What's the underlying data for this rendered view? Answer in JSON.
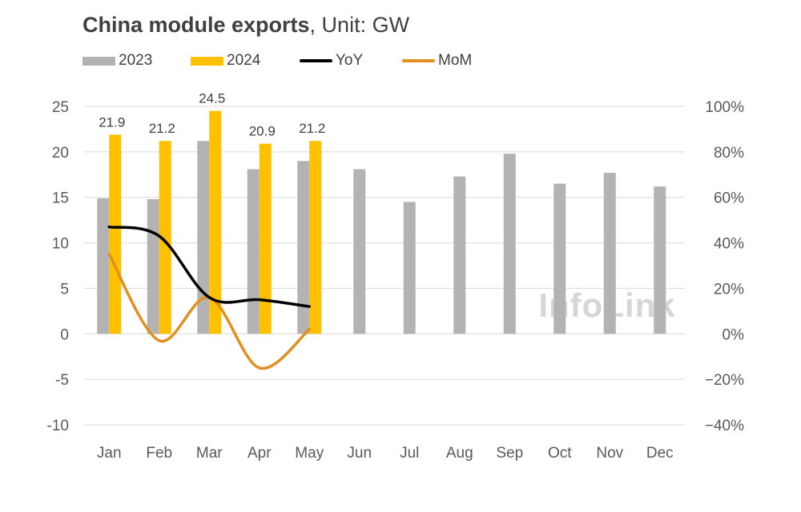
{
  "title": {
    "bold": "China module exports",
    "rest": ", Unit: GW"
  },
  "watermark": "InfoLink",
  "chart_data": {
    "type": "bar",
    "categories": [
      "Jan",
      "Feb",
      "Mar",
      "Apr",
      "May",
      "Jun",
      "Jul",
      "Aug",
      "Sep",
      "Oct",
      "Nov",
      "Dec"
    ],
    "series": [
      {
        "name": "2023",
        "type": "bar",
        "axis": "left",
        "color": "#b3b3b3",
        "values": [
          14.9,
          14.8,
          21.2,
          18.1,
          19.0,
          18.1,
          14.5,
          17.3,
          19.8,
          16.5,
          17.7,
          16.2
        ]
      },
      {
        "name": "2024",
        "type": "bar",
        "axis": "left",
        "color": "#ffc000",
        "values": [
          21.9,
          21.2,
          24.5,
          20.9,
          21.2,
          null,
          null,
          null,
          null,
          null,
          null,
          null
        ],
        "data_labels": [
          "21.9",
          "21.2",
          "24.5",
          "20.9",
          "21.2"
        ]
      },
      {
        "name": "YoY",
        "type": "line",
        "axis": "right",
        "color": "#000000",
        "values": [
          47,
          43,
          16,
          15,
          12,
          null,
          null,
          null,
          null,
          null,
          null,
          null
        ]
      },
      {
        "name": "MoM",
        "type": "line",
        "axis": "right",
        "color": "#e0901e",
        "values": [
          35,
          -3,
          16,
          -15,
          2,
          null,
          null,
          null,
          null,
          null,
          null,
          null
        ]
      }
    ],
    "y_left": {
      "min": -10,
      "max": 25,
      "ticks": [
        "25",
        "20",
        "15",
        "10",
        "5",
        "0",
        "-5",
        "-10"
      ]
    },
    "y_right": {
      "min": -40,
      "max": 100,
      "ticks": [
        "100%",
        "80%",
        "60%",
        "40%",
        "20%",
        "0%",
        "−20%",
        "−40%"
      ]
    },
    "grid": "horizontal",
    "legend": "top-left"
  }
}
